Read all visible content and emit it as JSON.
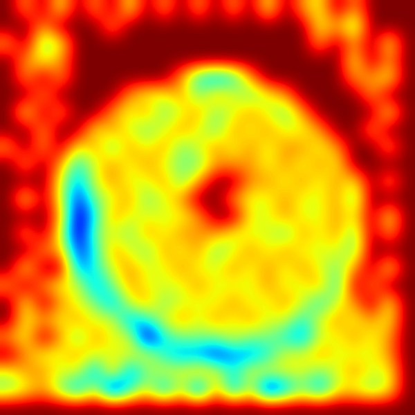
{
  "chart_data": {
    "type": "heatmap",
    "color": "jet",
    "tick_labels": false,
    "cells": [
      [
        9,
        7,
        9,
        6,
        9,
        7,
        9,
        6,
        9,
        7,
        9,
        7,
        9,
        7,
        9,
        6,
        9,
        7,
        6,
        9,
        7,
        9,
        9,
        9
      ],
      [
        9,
        9,
        7,
        9,
        9,
        9,
        7,
        9,
        9,
        9,
        9,
        9,
        9,
        9,
        9,
        9,
        9,
        9,
        6,
        7,
        5,
        9,
        9,
        9
      ],
      [
        7,
        9,
        5,
        6,
        9,
        9,
        9,
        9,
        9,
        9,
        9,
        9,
        9,
        9,
        9,
        9,
        9,
        9,
        7,
        9,
        7,
        9,
        6,
        9
      ],
      [
        9,
        7,
        6,
        7,
        9,
        9,
        9,
        9,
        9,
        9,
        9,
        9,
        9,
        9,
        9,
        9,
        9,
        9,
        9,
        9,
        6,
        9,
        7,
        9
      ],
      [
        9,
        7,
        9,
        7,
        9,
        9,
        9,
        9,
        9,
        9,
        7,
        4,
        3,
        4,
        7,
        9,
        9,
        9,
        9,
        9,
        7,
        7,
        6,
        9
      ],
      [
        9,
        9,
        7,
        9,
        9,
        9,
        9,
        7,
        6,
        6,
        7,
        5,
        7,
        6,
        5,
        6,
        7,
        9,
        9,
        9,
        9,
        7,
        9,
        9
      ],
      [
        9,
        6,
        9,
        7,
        9,
        9,
        7,
        6,
        7,
        5,
        6,
        7,
        5,
        6,
        7,
        6,
        5,
        7,
        9,
        9,
        9,
        9,
        6,
        9
      ],
      [
        9,
        9,
        7,
        9,
        9,
        6,
        7,
        6,
        5,
        6,
        7,
        6,
        5,
        7,
        6,
        7,
        6,
        6,
        7,
        9,
        9,
        7,
        9,
        9
      ],
      [
        7,
        9,
        7,
        9,
        6,
        7,
        5,
        7,
        6,
        7,
        5,
        6,
        7,
        6,
        7,
        6,
        7,
        7,
        6,
        7,
        9,
        9,
        7,
        9
      ],
      [
        9,
        7,
        9,
        7,
        4,
        6,
        7,
        6,
        7,
        6,
        5,
        5,
        7,
        7,
        7,
        6,
        7,
        6,
        7,
        6,
        9,
        9,
        9,
        9
      ],
      [
        9,
        9,
        9,
        6,
        3,
        6,
        7,
        6,
        6,
        7,
        5,
        7,
        9,
        9,
        7,
        7,
        6,
        7,
        6,
        7,
        6,
        9,
        7,
        9
      ],
      [
        9,
        6,
        9,
        6,
        2,
        5,
        6,
        7,
        5,
        6,
        7,
        9,
        9,
        7,
        6,
        6,
        7,
        6,
        6,
        7,
        5,
        9,
        9,
        9
      ],
      [
        9,
        9,
        9,
        7,
        1,
        4,
        7,
        6,
        6,
        6,
        6,
        7,
        9,
        9,
        6,
        6,
        7,
        6,
        6,
        7,
        6,
        9,
        6,
        9
      ],
      [
        9,
        7,
        9,
        6,
        1,
        5,
        6,
        5,
        7,
        6,
        7,
        7,
        7,
        6,
        6,
        6,
        5,
        7,
        6,
        7,
        5,
        9,
        7,
        9
      ],
      [
        9,
        9,
        7,
        7,
        2,
        4,
        7,
        6,
        5,
        7,
        6,
        7,
        5,
        6,
        7,
        6,
        7,
        6,
        6,
        6,
        5,
        9,
        9,
        9
      ],
      [
        9,
        6,
        9,
        9,
        3,
        4,
        6,
        7,
        6,
        6,
        7,
        6,
        6,
        7,
        6,
        7,
        6,
        7,
        6,
        5,
        7,
        9,
        6,
        9
      ],
      [
        7,
        9,
        7,
        6,
        6,
        3,
        5,
        7,
        6,
        6,
        6,
        7,
        6,
        6,
        6,
        7,
        6,
        6,
        7,
        4,
        9,
        7,
        9,
        9
      ],
      [
        9,
        6,
        9,
        7,
        6,
        5,
        3,
        6,
        7,
        5,
        6,
        6,
        6,
        7,
        6,
        6,
        7,
        6,
        4,
        6,
        7,
        9,
        6,
        9
      ],
      [
        9,
        6,
        7,
        6,
        7,
        6,
        6,
        3,
        4,
        6,
        7,
        6,
        7,
        6,
        7,
        6,
        6,
        4,
        6,
        7,
        6,
        7,
        6,
        9
      ],
      [
        7,
        6,
        9,
        7,
        5,
        7,
        6,
        6,
        1,
        4,
        5,
        5,
        5,
        6,
        5,
        5,
        4,
        3,
        6,
        6,
        7,
        6,
        7,
        9
      ],
      [
        9,
        7,
        6,
        6,
        7,
        6,
        6,
        6,
        6,
        4,
        3,
        3,
        2,
        3,
        3,
        4,
        6,
        6,
        7,
        6,
        6,
        6,
        7,
        9
      ],
      [
        6,
        7,
        7,
        6,
        6,
        3,
        7,
        3,
        5,
        6,
        6,
        7,
        6,
        4,
        6,
        6,
        6,
        6,
        5,
        6,
        7,
        6,
        6,
        9
      ],
      [
        5,
        6,
        7,
        5,
        3,
        6,
        1,
        4,
        6,
        3,
        6,
        2,
        7,
        3,
        6,
        1,
        3,
        5,
        3,
        6,
        6,
        5,
        6,
        9
      ],
      [
        9,
        9,
        9,
        9,
        9,
        9,
        9,
        9,
        9,
        9,
        9,
        9,
        9,
        9,
        9,
        9,
        9,
        9,
        9,
        9,
        9,
        9,
        9,
        9
      ]
    ]
  }
}
